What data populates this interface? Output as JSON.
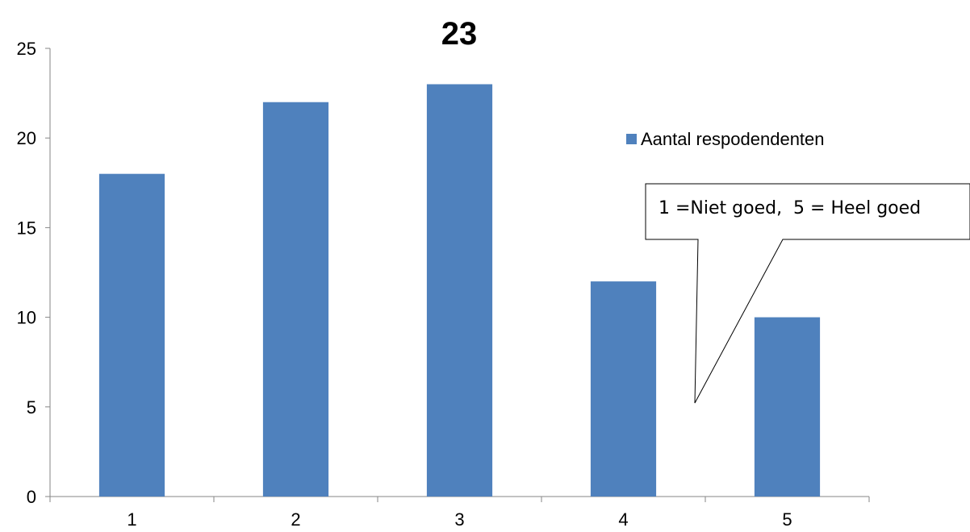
{
  "chart_data": {
    "type": "bar",
    "title": "23",
    "xlabel": "",
    "ylabel": "",
    "categories": [
      "1",
      "2",
      "3",
      "4",
      "5"
    ],
    "series": [
      {
        "name": "Aantal respodendenten",
        "values": [
          18,
          22,
          23,
          12,
          10
        ],
        "color": "#4f81bd"
      }
    ],
    "ylim": [
      0,
      25
    ],
    "yticks": [
      "0",
      "5",
      "10",
      "15",
      "20",
      "25"
    ],
    "grid": false,
    "legend": {
      "position": "right"
    },
    "annotation": "1 =Niet goed,  5 = Heel goed"
  }
}
